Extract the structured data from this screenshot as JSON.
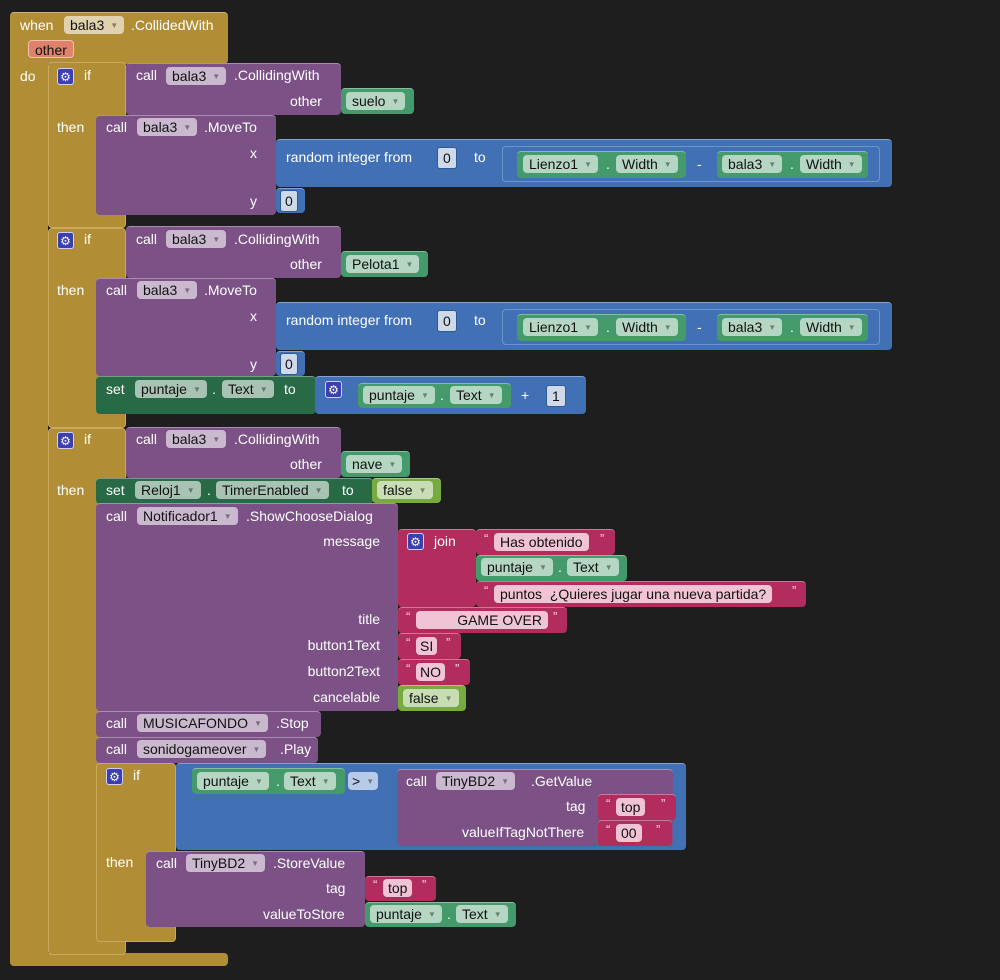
{
  "kw": {
    "when": "when",
    "do": "do",
    "if": "if",
    "then": "then",
    "call": "call",
    "set": "set",
    "to": "to",
    "other": "other",
    "x": "x",
    "y": "y",
    "random": "random integer from",
    "dot": ".",
    "minus": "-",
    "plus": "+",
    "join": "join",
    "open_quote": "“",
    "close_quote": "”",
    "gt": ">"
  },
  "event": {
    "component": "bala3",
    "name": ".CollidedWith",
    "param": "other"
  },
  "if1": {
    "component": "bala3",
    "method": ".CollidingWith",
    "other": "suelo",
    "move_component": "bala3",
    "move_method": ".MoveTo",
    "from": "0",
    "canvas": "Lienzo1",
    "prop": "Width",
    "sprite": "bala3",
    "y": "0"
  },
  "if2": {
    "component": "bala3",
    "method": ".CollidingWith",
    "other": "Pelota1",
    "move_component": "bala3",
    "move_method": ".MoveTo",
    "from": "0",
    "canvas": "Lienzo1",
    "prop": "Width",
    "sprite": "bala3",
    "y": "0",
    "set_component": "puntaje",
    "set_prop": "Text",
    "add_component": "puntaje",
    "add_prop": "Text",
    "add_value": "1"
  },
  "if3": {
    "component": "bala3",
    "method": ".CollidingWith",
    "other": "nave",
    "set_component": "Reloj1",
    "set_prop": "TimerEnabled",
    "set_value": "false",
    "notifier": "Notificador1",
    "notifier_method": ".ShowChooseDialog",
    "labels": {
      "message": "message",
      "title": "title",
      "button1": "button1Text",
      "button2": "button2Text",
      "cancelable": "cancelable"
    },
    "msg1": "Has obtenido",
    "msg_component": "puntaje",
    "msg_prop": "Text",
    "msg2": "puntos  ¿Quieres jugar una nueva partida?",
    "title": "GAME OVER",
    "button1": "SI",
    "button2": "NO",
    "cancelable": "false",
    "music": "MUSICAFONDO",
    "music_method": ".Stop",
    "sound": "sonidogameover",
    "sound_method": ".Play",
    "cmp_component": "puntaje",
    "cmp_prop": "Text",
    "op": ">",
    "db": "TinyBD2",
    "get_method": ".GetValue",
    "tag_label": "tag",
    "tag": "top",
    "notthere_label": "valueIfTagNotThere",
    "notthere": "00",
    "store_db": "TinyBD2",
    "store_method": ".StoreValue",
    "store_tag_label": "tag",
    "store_tag": "top",
    "store_label": "valueToStore",
    "store_component": "puntaje",
    "store_prop": "Text"
  },
  "colors": {
    "event": "#b18e35",
    "procedure": "#7b5186",
    "math": "#4170b5",
    "component": "#449a6a",
    "setter": "#276a45",
    "text": "#b22d5e",
    "logic": "#77ab41"
  }
}
